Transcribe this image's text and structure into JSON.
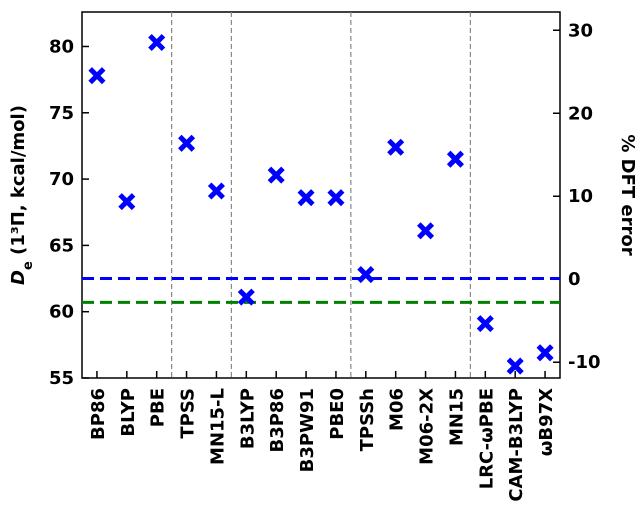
{
  "chart_data": {
    "type": "scatter",
    "y_label": "De (1³Π, kcal/mol)",
    "y2_label": "% DFT error",
    "categories": [
      "BP86",
      "BLYP",
      "PBE",
      "TPSS",
      "MN15-L",
      "B3LYP",
      "B3P86",
      "B3PW91",
      "PBE0",
      "TPSSh",
      "M06",
      "M06-2X",
      "MN15",
      "LRC-ωPBE",
      "CAM-B3LYP",
      "ωB97X"
    ],
    "series": [
      {
        "color": "#0000ff",
        "values": [
          77.8,
          68.3,
          80.3,
          72.7,
          69.1,
          61.1,
          70.3,
          68.6,
          68.6,
          62.8,
          72.4,
          66.1,
          71.5,
          59.1,
          55.9,
          56.9
        ]
      }
    ],
    "ylim": [
      55,
      82.6
    ],
    "yticks": [
      55,
      60,
      65,
      70,
      75,
      80
    ],
    "y2lim": [
      -11.9,
      32.2
    ],
    "y2ticks": [
      -10,
      0,
      10,
      20,
      30
    ],
    "reference_lines": [
      {
        "value": 62.5,
        "color": "#0000ff"
      },
      {
        "value": 60.7,
        "color": "#008000"
      }
    ],
    "group_separators": [
      3,
      5,
      9,
      13
    ]
  }
}
